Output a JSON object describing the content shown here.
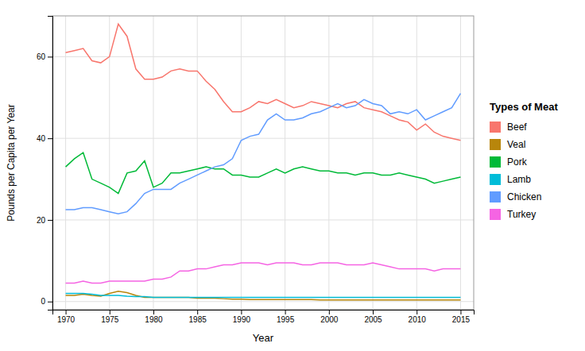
{
  "chart_data": {
    "type": "line",
    "xlabel": "Year",
    "ylabel": "Pounds per Capita per Year",
    "legend_title": "Types of Meat",
    "legend": "right",
    "grid": true,
    "xlim": [
      1968.5,
      2016.5
    ],
    "ylim": [
      -2,
      70
    ],
    "xticks": [
      1970,
      1975,
      1980,
      1985,
      1990,
      1995,
      2000,
      2005,
      2010,
      2015
    ],
    "yticks": [
      0,
      20,
      40,
      60
    ],
    "x": [
      1970,
      1971,
      1972,
      1973,
      1974,
      1975,
      1976,
      1977,
      1978,
      1979,
      1980,
      1981,
      1982,
      1983,
      1984,
      1985,
      1986,
      1987,
      1988,
      1989,
      1990,
      1991,
      1992,
      1993,
      1994,
      1995,
      1996,
      1997,
      1998,
      1999,
      2000,
      2001,
      2002,
      2003,
      2004,
      2005,
      2006,
      2007,
      2008,
      2009,
      2010,
      2011,
      2012,
      2013,
      2014,
      2015
    ],
    "series": [
      {
        "name": "Beef",
        "color": "#F8766D",
        "values": [
          61.0,
          61.5,
          62.0,
          59.0,
          58.5,
          60.0,
          68.0,
          65.0,
          57.0,
          54.5,
          54.5,
          55.0,
          56.5,
          57.0,
          56.5,
          56.5,
          54.0,
          52.0,
          49.0,
          46.5,
          46.5,
          47.5,
          49.0,
          48.5,
          49.5,
          48.5,
          47.5,
          48.0,
          49.0,
          48.5,
          48.0,
          47.5,
          48.5,
          49.0,
          47.5,
          47.0,
          46.5,
          45.5,
          44.5,
          44.0,
          42.0,
          43.5,
          41.5,
          40.5,
          40.0,
          39.5
        ]
      },
      {
        "name": "Veal",
        "color": "#B8860B",
        "values": [
          1.5,
          1.5,
          1.8,
          1.5,
          1.3,
          2.0,
          2.5,
          2.2,
          1.5,
          1.0,
          1.0,
          1.0,
          1.0,
          1.0,
          1.0,
          0.8,
          0.8,
          0.8,
          0.7,
          0.6,
          0.6,
          0.5,
          0.5,
          0.5,
          0.5,
          0.5,
          0.5,
          0.5,
          0.5,
          0.4,
          0.4,
          0.4,
          0.4,
          0.4,
          0.4,
          0.4,
          0.4,
          0.4,
          0.4,
          0.4,
          0.4,
          0.4,
          0.4,
          0.4,
          0.4,
          0.4
        ]
      },
      {
        "name": "Pork",
        "color": "#00BA38",
        "values": [
          33.0,
          35.0,
          36.5,
          30.0,
          29.0,
          28.0,
          26.5,
          31.5,
          32.0,
          34.5,
          28.0,
          29.0,
          31.5,
          31.5,
          32.0,
          32.5,
          33.0,
          32.5,
          32.5,
          31.0,
          31.0,
          30.5,
          30.5,
          31.5,
          32.5,
          31.5,
          32.5,
          33.0,
          32.5,
          32.0,
          32.0,
          31.5,
          31.5,
          31.0,
          31.5,
          31.5,
          31.0,
          31.0,
          31.5,
          31.0,
          30.5,
          30.0,
          29.0,
          29.5,
          30.0,
          30.5
        ]
      },
      {
        "name": "Lamb",
        "color": "#00BCD8",
        "values": [
          2.0,
          2.0,
          2.0,
          1.8,
          1.5,
          1.5,
          1.5,
          1.3,
          1.2,
          1.2,
          1.0,
          1.0,
          1.0,
          1.0,
          1.0,
          1.0,
          1.0,
          1.0,
          1.0,
          1.0,
          1.0,
          1.0,
          1.0,
          1.0,
          1.0,
          1.0,
          1.0,
          1.0,
          1.0,
          1.0,
          1.0,
          1.0,
          1.0,
          1.0,
          1.0,
          1.0,
          1.0,
          1.0,
          1.0,
          1.0,
          1.0,
          1.0,
          1.0,
          1.0,
          1.0,
          1.0
        ]
      },
      {
        "name": "Chicken",
        "color": "#619CFF",
        "values": [
          22.5,
          22.5,
          23.0,
          23.0,
          22.5,
          22.0,
          21.5,
          22.0,
          24.0,
          26.5,
          27.5,
          27.5,
          27.5,
          29.0,
          30.0,
          31.0,
          32.0,
          33.0,
          33.5,
          35.0,
          39.5,
          40.5,
          41.0,
          44.5,
          46.0,
          44.5,
          44.5,
          45.0,
          46.0,
          46.5,
          47.5,
          48.5,
          47.5,
          48.0,
          49.5,
          48.5,
          48.0,
          46.0,
          46.5,
          46.0,
          47.0,
          44.5,
          45.5,
          46.5,
          47.5,
          51.0
        ]
      },
      {
        "name": "Turkey",
        "color": "#F564E3",
        "values": [
          4.5,
          4.5,
          5.0,
          4.5,
          4.5,
          5.0,
          5.0,
          5.0,
          5.0,
          5.0,
          5.5,
          5.5,
          6.0,
          7.5,
          7.5,
          8.0,
          8.0,
          8.5,
          9.0,
          9.0,
          9.5,
          9.5,
          9.5,
          9.0,
          9.5,
          9.5,
          9.5,
          9.0,
          9.0,
          9.5,
          9.5,
          9.5,
          9.0,
          9.0,
          9.0,
          9.5,
          9.0,
          8.5,
          8.0,
          8.0,
          8.0,
          8.0,
          7.5,
          8.0,
          8.0,
          8.0
        ]
      }
    ]
  }
}
